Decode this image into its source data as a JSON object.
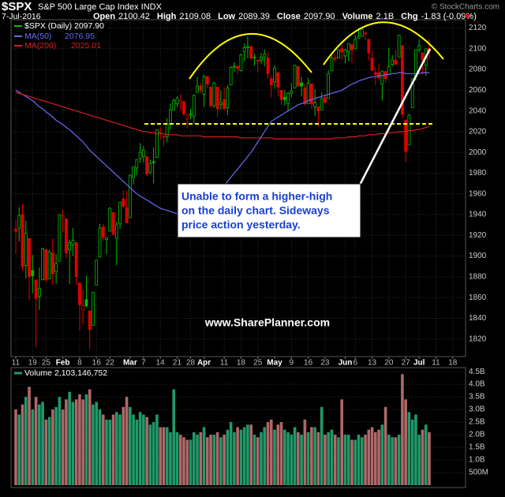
{
  "chart_data": {
    "type": "candlestick",
    "header": {
      "symbol": "$SPX",
      "title": "S&P 500 Large Cap Index INDX",
      "date": "7-Jul-2016",
      "quote": [
        {
          "label": "Open",
          "value": "2100.42"
        },
        {
          "label": "High",
          "value": "2109.08"
        },
        {
          "label": "Low",
          "value": "2089.39"
        },
        {
          "label": "Close",
          "value": "2097.90"
        },
        {
          "label": "Volume",
          "value": "2.1B"
        },
        {
          "label": "Chg",
          "value": "-1.83 (-0.09%)"
        }
      ],
      "credit": "© StockCharts.com"
    },
    "name": "$SPX (Daily)",
    "last_label": "2097.90",
    "up_color": "#00c000",
    "down_color": "#e00000",
    "categories": [
      "11",
      null,
      null,
      null,
      null,
      "19",
      null,
      null,
      null,
      "25",
      null,
      null,
      null,
      null,
      "Feb",
      null,
      null,
      null,
      null,
      "8",
      null,
      null,
      null,
      null,
      "16",
      null,
      null,
      null,
      "22",
      null,
      null,
      null,
      null,
      null,
      "Mar",
      null,
      null,
      null,
      "7",
      null,
      null,
      null,
      null,
      "14",
      null,
      null,
      null,
      null,
      "21",
      null,
      null,
      null,
      "28",
      null,
      null,
      null,
      "Apr",
      null,
      null,
      null,
      null,
      null,
      "11",
      null,
      null,
      null,
      null,
      "18",
      null,
      null,
      null,
      null,
      "25",
      null,
      null,
      null,
      null,
      "May",
      null,
      null,
      null,
      null,
      "9",
      null,
      null,
      null,
      null,
      "16",
      null,
      null,
      null,
      null,
      "23",
      null,
      null,
      null,
      null,
      null,
      "Jun",
      null,
      null,
      "6",
      null,
      null,
      null,
      null,
      "13",
      null,
      null,
      null,
      null,
      "20",
      null,
      null,
      null,
      null,
      "27",
      null,
      null,
      null,
      "Jul",
      null,
      null,
      null,
      null,
      "11",
      null,
      null,
      null,
      null,
      "18",
      null
    ],
    "open": [
      1926,
      1927,
      1940,
      1891,
      1917,
      1886,
      1877,
      1861,
      1877,
      1906,
      1878,
      1903,
      1885,
      1895,
      1937,
      1936,
      1906,
      1911,
      1913,
      1874,
      1848,
      1858,
      1847,
      1833,
      1872,
      1899,
      1928,
      1916,
      1924,
      1942,
      1917,
      1931,
      1955,
      1947,
      1937,
      1976,
      1985,
      1994,
      1996,
      1996,
      1981,
      1991,
      1995,
      2019,
      2015,
      2015,
      2027,
      2041,
      2047,
      2048,
      2049,
      2032,
      2037,
      2035,
      2058,
      2064,
      2056,
      2073,
      2063,
      2045,
      2063,
      2046,
      2051,
      2043,
      2065,
      2083,
      2083,
      2079,
      2097,
      2101,
      2102,
      2092,
      2089,
      2089,
      2092,
      2091,
      2071,
      2068,
      2077,
      2060,
      2053,
      2047,
      2057,
      2062,
      2083,
      2067,
      2062,
      2047,
      2066,
      2044,
      2044,
      2041,
      2053,
      2052,
      2079,
      2091,
      2091,
      2100,
      2093,
      2097,
      2104,
      2100,
      2110,
      2112,
      2115,
      2109,
      2091,
      2077,
      2077,
      2066,
      2078,
      2075,
      2085,
      2089,
      2092,
      2103,
      2031,
      2007,
      2043,
      2073,
      2099,
      2096,
      2084,
      2100.42,
      null,
      null,
      null,
      null,
      null,
      null,
      null,
      null
    ],
    "high": [
      1935,
      1947,
      1950,
      1934,
      1917,
      1901,
      1877,
      1889,
      1908,
      1907,
      1906,
      1917,
      1902,
      1940,
      1945,
      1936,
      1916,
      1927,
      1913,
      1874,
      1868,
      1881,
      1847,
      1865,
      1896,
      1931,
      1931,
      1918,
      1947,
      1942,
      1933,
      1952,
      1963,
      1963,
      1978,
      1986,
      1993,
      2009,
      2006,
      1996,
      1993,
      2005,
      2022,
      2024,
      2016,
      2033,
      2047,
      2052,
      2054,
      2056,
      2049,
      2036,
      2042,
      2056,
      2073,
      2067,
      2075,
      2074,
      2063,
      2068,
      2063,
      2060,
      2063,
      2065,
      2083,
      2087,
      2084,
      2095,
      2105,
      2112,
      2103,
      2095,
      2089,
      2096,
      2099,
      2097,
      2074,
      2084,
      2077,
      2060,
      2060,
      2058,
      2067,
      2084,
      2083,
      2073,
      2066,
      2072,
      2067,
      2061,
      2044,
      2058,
      2056,
      2079,
      2094,
      2094,
      2099,
      2104,
      2100,
      2105,
      2104,
      2113,
      2120,
      2120,
      2117,
      2109,
      2098,
      2082,
      2085,
      2079,
      2078,
      2101,
      2094,
      2099,
      2113,
      2103,
      2031,
      2037,
      2071,
      2099,
      2109,
      2096,
      2100,
      2109.08,
      null,
      null,
      null,
      null,
      null,
      null,
      null,
      null
    ],
    "low": [
      1902,
      1914,
      1886,
      1878,
      1857,
      1864,
      1812,
      1848,
      1877,
      1875,
      1878,
      1872,
      1873,
      1895,
      1923,
      1898,
      1873,
      1900,
      1872,
      1828,
      1834,
      1850,
      1810,
      1833,
      1872,
      1899,
      1915,
      1902,
      1924,
      1920,
      1891,
      1926,
      1946,
      1932,
      1937,
      1969,
      1978,
      1990,
      1990,
      1977,
      1979,
      1970,
      1995,
      2012,
      2006,
      2010,
      2022,
      2041,
      2044,
      2041,
      2035,
      2023,
      2032,
      2028,
      2058,
      2057,
      2044,
      2062,
      2043,
      2043,
      2034,
      2041,
      2041,
      2036,
      2065,
      2078,
      2076,
      2078,
      2088,
      2091,
      2089,
      2084,
      2077,
      2085,
      2083,
      2071,
      2053,
      2062,
      2054,
      2046,
      2045,
      2040,
      2053,
      2062,
      2064,
      2054,
      2045,
      2047,
      2042,
      2035,
      2025,
      2041,
      2048,
      2052,
      2079,
      2087,
      2091,
      2089,
      2086,
      2088,
      2086,
      2100,
      2110,
      2112,
      2108,
      2089,
      2079,
      2065,
      2070,
      2050,
      2067,
      2075,
      2083,
      2084,
      2092,
      2033,
      1991,
      2007,
      2043,
      2069,
      2097,
      2075,
      2074,
      2089.39,
      null,
      null,
      null,
      null,
      null,
      null,
      null,
      null
    ],
    "close": [
      1924,
      1939,
      1890,
      1922,
      1880,
      1881,
      1859,
      1869,
      1907,
      1877,
      1904,
      1883,
      1893,
      1940,
      1939,
      1903,
      1913,
      1915,
      1880,
      1853,
      1852,
      1852,
      1829,
      1865,
      1896,
      1927,
      1918,
      1918,
      1946,
      1921,
      1930,
      1952,
      1948,
      1932,
      1978,
      1986,
      1993,
      2000,
      2002,
      1979,
      1989,
      1990,
      2022,
      2020,
      2016,
      2027,
      2041,
      2050,
      2052,
      2050,
      2037,
      2036,
      2037,
      2055,
      2064,
      2060,
      2073,
      2066,
      2045,
      2067,
      2042,
      2048,
      2042,
      2062,
      2082,
      2083,
      2081,
      2094,
      2101,
      2102,
      2091,
      2092,
      2088,
      2092,
      2095,
      2076,
      2065,
      2081,
      2063,
      2051,
      2051,
      2057,
      2059,
      2084,
      2064,
      2064,
      2047,
      2067,
      2047,
      2048,
      2040,
      2052,
      2048,
      2076,
      2091,
      2090,
      2099,
      2097,
      2099,
      2105,
      2099,
      2109,
      2112,
      2119,
      2115,
      2096,
      2079,
      2075,
      2072,
      2078,
      2071,
      2083,
      2089,
      2085,
      2113,
      2037,
      2001,
      2036,
      2071,
      2099,
      2103,
      2089,
      2100,
      2097.9,
      null,
      null,
      null,
      null,
      null,
      null,
      null,
      null
    ],
    "ylim": [
      1803,
      2128
    ],
    "yticks": [
      1820,
      1840,
      1860,
      1880,
      1900,
      1920,
      1940,
      1960,
      1980,
      2000,
      2020,
      2040,
      2060,
      2080,
      2100,
      2120
    ],
    "grid": true,
    "series": [
      {
        "name": "MA(50)",
        "last_label": "2076.95",
        "color": "#6a6af5",
        "values": [
          2060,
          2058,
          2056,
          2054,
          2052,
          2050,
          2047,
          2044,
          2042,
          2039,
          2037,
          2034,
          2031,
          2029,
          2027,
          2024,
          2022,
          2019,
          2016,
          2013,
          2010,
          2006,
          2002,
          1999,
          1996,
          1993,
          1990,
          1987,
          1984,
          1981,
          1978,
          1975,
          1972,
          1969,
          1966,
          1963,
          1960,
          1958,
          1956,
          1954,
          1952,
          1950,
          1948,
          1946,
          1945,
          1944,
          1943,
          1942,
          1941,
          1940,
          1940,
          1940,
          1942,
          1944,
          1946,
          1948,
          1950,
          1953,
          1956,
          1959,
          1962,
          1965,
          1968,
          1972,
          1976,
          1980,
          1984,
          1988,
          1992,
          1996,
          2000,
          2005,
          2010,
          2015,
          2020,
          2025,
          2030,
          2032,
          2034,
          2036,
          2038,
          2040,
          2042,
          2044,
          2046,
          2047,
          2048,
          2050,
          2051,
          2052,
          2053,
          2054,
          2055,
          2056,
          2057,
          2058,
          2059,
          2060,
          2062,
          2064,
          2066,
          2067,
          2069,
          2070,
          2071,
          2072,
          2073,
          2073,
          2074,
          2074,
          2075,
          2075,
          2076,
          2076,
          2077,
          2077,
          2076,
          2076,
          2076,
          2076,
          2076,
          2077,
          2077,
          2076.95,
          null,
          null,
          null,
          null,
          null,
          null,
          null,
          null
        ]
      },
      {
        "name": "MA(200)",
        "last_label": "2025.01",
        "color": "#d42020",
        "values": [
          2058,
          2057,
          2056,
          2055,
          2054,
          2053,
          2052,
          2051,
          2050,
          2049,
          2048,
          2047,
          2046,
          2045,
          2044,
          2043,
          2042,
          2041,
          2040,
          2039,
          2038,
          2037,
          2036,
          2035,
          2034,
          2033,
          2032,
          2031,
          2030,
          2029,
          2028,
          2027,
          2026,
          2025,
          2024,
          2023,
          2022,
          2021,
          2020,
          2020,
          2019,
          2019,
          2018,
          2018,
          2018,
          2017,
          2017,
          2017,
          2017,
          2016,
          2016,
          2016,
          2016,
          2016,
          2016,
          2016,
          2015,
          2015,
          2015,
          2015,
          2015,
          2015,
          2015,
          2015,
          2015,
          2015,
          2015,
          2014,
          2014,
          2014,
          2014,
          2014,
          2014,
          2014,
          2014,
          2014,
          2014,
          2013,
          2013,
          2013,
          2013,
          2013,
          2013,
          2013,
          2013,
          2013,
          2013,
          2013,
          2013,
          2013,
          2013,
          2013,
          2013,
          2013,
          2013,
          2014,
          2014,
          2014,
          2014,
          2015,
          2015,
          2015,
          2016,
          2016,
          2016,
          2017,
          2017,
          2017,
          2018,
          2018,
          2018,
          2019,
          2019,
          2019,
          2020,
          2020,
          2020,
          2021,
          2021,
          2022,
          2022,
          2023,
          2024,
          2025.01,
          null,
          null,
          null,
          null,
          null,
          null,
          null,
          null
        ]
      }
    ],
    "volume": {
      "label": "Volume 2,103,146,752",
      "up_color": "#1f9a6a",
      "down_color": "#b06868",
      "values": [
        3.0,
        2.8,
        3.2,
        3.5,
        3.9,
        3.0,
        3.5,
        3.2,
        3.3,
        2.6,
        2.7,
        3.0,
        3.1,
        3.5,
        3.0,
        3.4,
        3.7,
        3.3,
        3.4,
        3.6,
        3.4,
        3.6,
        3.8,
        3.2,
        3.3,
        3.0,
        2.8,
        2.6,
        2.6,
        2.8,
        2.9,
        2.8,
        3.1,
        3.5,
        3.1,
        2.8,
        2.6,
        2.9,
        2.8,
        2.7,
        2.4,
        2.5,
        2.8,
        2.3,
        2.3,
        2.3,
        2.1,
        3.8,
        2.1,
        2.0,
        1.9,
        1.8,
        1.8,
        2.1,
        2.0,
        2.1,
        2.3,
        1.9,
        2.0,
        2.0,
        2.1,
        1.9,
        2.0,
        2.2,
        2.5,
        2.1,
        2.3,
        2.2,
        2.3,
        2.4,
        2.4,
        2.0,
        1.9,
        2.1,
        2.3,
        2.5,
        2.6,
        2.2,
        2.4,
        2.5,
        2.2,
        2.1,
        2.0,
        2.3,
        2.1,
        2.0,
        2.6,
        2.1,
        2.3,
        2.3,
        2.1,
        3.1,
        2.0,
        2.1,
        2.2,
        2.0,
        1.9,
        3.4,
        2.0,
        2.0,
        1.8,
        1.8,
        2.0,
        1.9,
        2.0,
        2.2,
        2.3,
        2.1,
        2.2,
        2.4,
        3.1,
        2.0,
        1.9,
        1.9,
        2.0,
        4.4,
        3.4,
        2.9,
        2.6,
        2.8,
        2.0,
        2.2,
        2.4,
        2.103,
        null,
        null,
        null,
        null,
        null,
        null,
        null,
        null
      ],
      "ylim": [
        0,
        4.66
      ],
      "yticks": [
        {
          "value": 0.5,
          "label": "500M"
        },
        {
          "value": 1.0,
          "label": "1.0B"
        },
        {
          "value": 1.5,
          "label": "1.5B"
        },
        {
          "value": 2.0,
          "label": "2.0B"
        },
        {
          "value": 2.5,
          "label": "2.5B"
        },
        {
          "value": 3.0,
          "label": "3.0B"
        },
        {
          "value": 3.5,
          "label": "3.5B"
        },
        {
          "value": 4.0,
          "label": "4.0B"
        },
        {
          "value": 4.5,
          "label": "4.5B"
        }
      ]
    },
    "annotations": {
      "callout": [
        "Unable to form a higher-high",
        "on the daily chart. Sideways",
        "price action yesterday."
      ],
      "watermark": "www.SharePlanner.com"
    }
  }
}
